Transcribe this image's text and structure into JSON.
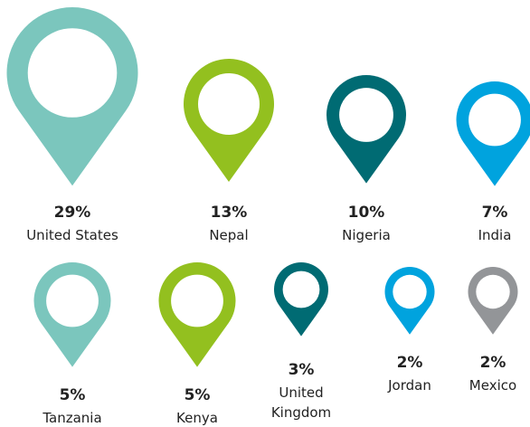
{
  "chart_data": {
    "type": "pin",
    "categories": [
      "United States",
      "Nepal",
      "Nigeria",
      "India",
      "Tanzania",
      "Kenya",
      "United Kingdom",
      "Jordan",
      "Mexico"
    ],
    "values": [
      29,
      13,
      10,
      7,
      5,
      5,
      3,
      2,
      2
    ],
    "value_labels": [
      "29%",
      "13%",
      "10%",
      "7%",
      "5%",
      "5%",
      "3%",
      "2%",
      "2%"
    ],
    "colors": [
      "#7bc6bd",
      "#93c01f",
      "#006b73",
      "#00a3de",
      "#7bc6bd",
      "#93c01f",
      "#006b73",
      "#00a3de",
      "#939598"
    ]
  }
}
